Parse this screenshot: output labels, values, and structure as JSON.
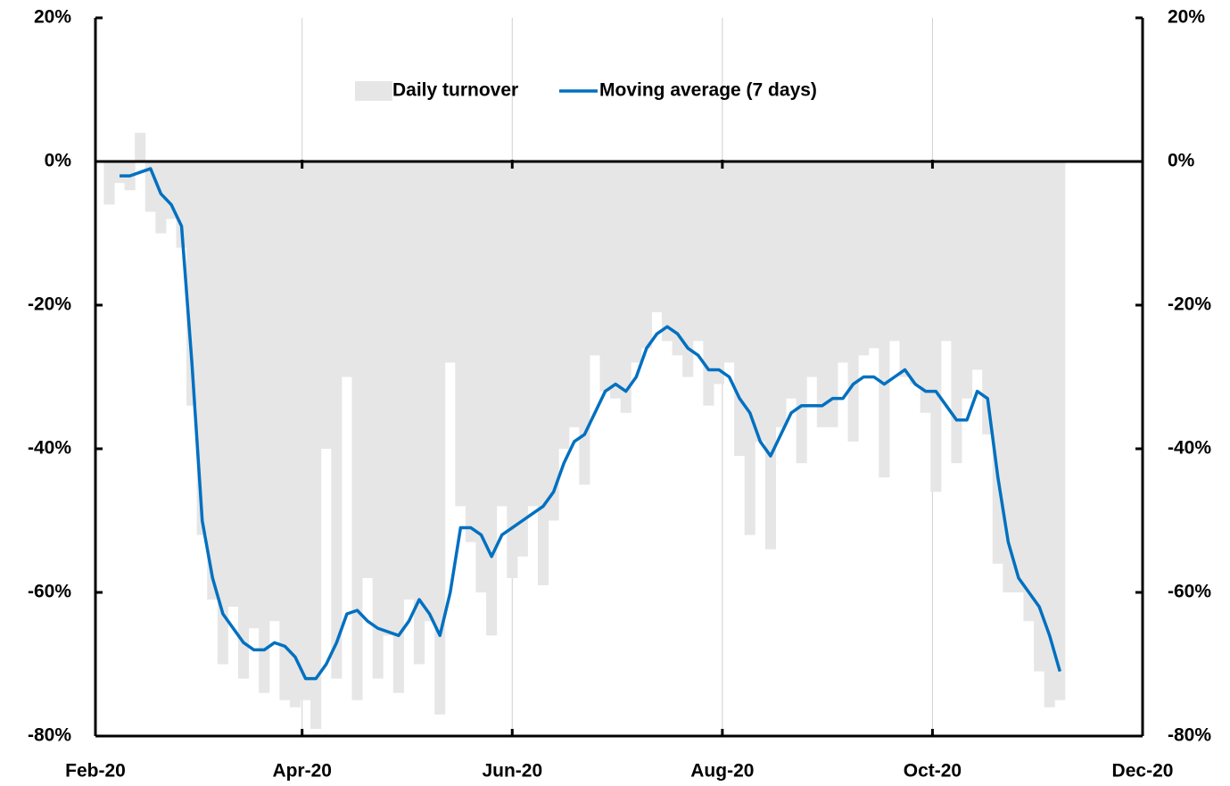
{
  "chart_data": {
    "type": "bar_line",
    "x": [
      4,
      7,
      10,
      13,
      16,
      19,
      22,
      25,
      28,
      31,
      34,
      37,
      40,
      43,
      46,
      49,
      52,
      55,
      58,
      61,
      64,
      67,
      70,
      73,
      76,
      79,
      82,
      85,
      88,
      91,
      94,
      97,
      100,
      103,
      106,
      109,
      112,
      115,
      118,
      121,
      124,
      127,
      130,
      133,
      136,
      139,
      142,
      145,
      148,
      151,
      154,
      157,
      160,
      163,
      166,
      169,
      172,
      175,
      178,
      181,
      184,
      187,
      190,
      193,
      196,
      199,
      202,
      205,
      208,
      211,
      214,
      217,
      220,
      223,
      226,
      229,
      232,
      235,
      238,
      241,
      244,
      247,
      250,
      253,
      256,
      259,
      262,
      265,
      268,
      271,
      274,
      277,
      280
    ],
    "series": [
      {
        "name": "Daily turnover",
        "kind": "bar",
        "color": "#e6e6e6",
        "values": [
          -6,
          -3,
          -4,
          4,
          -7,
          -10,
          -8,
          -12,
          -34,
          -52,
          -61,
          -70,
          -62,
          -72,
          -65,
          -74,
          -64,
          -75,
          -76,
          -75,
          -79,
          -40,
          -72,
          -30,
          -75,
          -58,
          -72,
          -66,
          -74,
          -61,
          -70,
          -64,
          -77,
          -28,
          -48,
          -53,
          -60,
          -66,
          -48,
          -58,
          -55,
          -48,
          -59,
          -50,
          -40,
          -37,
          -45,
          -27,
          -32,
          -33,
          -35,
          -28,
          -26,
          -21,
          -25,
          -27,
          -30,
          -25,
          -34,
          -31,
          -28,
          -41,
          -52,
          -39,
          -54,
          -37,
          -33,
          -42,
          -30,
          -37,
          -37,
          -28,
          -39,
          -27,
          -26,
          -44,
          -25,
          -30,
          -31,
          -35,
          -46,
          -25,
          -42,
          -33,
          -29,
          -38,
          -56,
          -60,
          -60,
          -64,
          -71,
          -76,
          -75
        ]
      },
      {
        "name": "Moving average (7 days)",
        "kind": "line",
        "color": "#0070c0",
        "values": [
          null,
          -2,
          -2,
          -1.5,
          -1,
          -4.5,
          -6,
          -9,
          -28,
          -50,
          -58,
          -63,
          -65,
          -67,
          -68,
          -68,
          -67,
          -67.5,
          -69,
          -72,
          -72,
          -70,
          -67,
          -63,
          -62.5,
          -64,
          -65,
          -65.5,
          -66,
          -64,
          -61,
          -63,
          -66,
          -60,
          -51,
          -51,
          -52,
          -55,
          -52,
          -51,
          -50,
          -49,
          -48,
          -46,
          -42,
          -39,
          -38,
          -35,
          -32,
          -31,
          -32,
          -30,
          -26,
          -24,
          -23,
          -24,
          -26,
          -27,
          -29,
          -29,
          -30,
          -33,
          -35,
          -39,
          -41,
          -38,
          -35,
          -34,
          -34,
          -34,
          -33,
          -33,
          -31,
          -30,
          -30,
          -31,
          -30,
          -29,
          -31,
          -32,
          -32,
          -34,
          -36,
          -36,
          -32,
          -33,
          -44,
          -53,
          -58,
          -60,
          -62,
          -66,
          -71
        ]
      }
    ],
    "xlim": [
      0,
      304
    ],
    "xticks": [
      {
        "value": 0,
        "label": "Feb-20"
      },
      {
        "value": 60,
        "label": "Apr-20"
      },
      {
        "value": 121,
        "label": "Jun-20"
      },
      {
        "value": 182,
        "label": "Aug-20"
      },
      {
        "value": 243,
        "label": "Oct-20"
      },
      {
        "value": 304,
        "label": "Dec-20"
      }
    ],
    "ylim": [
      -80,
      20
    ],
    "yticks": [
      {
        "value": 20,
        "label": "20%"
      },
      {
        "value": 0,
        "label": "0%"
      },
      {
        "value": -20,
        "label": "-20%"
      },
      {
        "value": -40,
        "label": "-40%"
      },
      {
        "value": -60,
        "label": "-60%"
      },
      {
        "value": -80,
        "label": "-80%"
      }
    ],
    "y2lim": [
      -80,
      20
    ],
    "y2ticks": [
      {
        "value": 20,
        "label": "20%"
      },
      {
        "value": 0,
        "label": "0%"
      },
      {
        "value": -20,
        "label": "-20%"
      },
      {
        "value": -40,
        "label": "-40%"
      },
      {
        "value": -60,
        "label": "-60%"
      },
      {
        "value": -80,
        "label": "-80%"
      }
    ],
    "grid": "x",
    "legend": "top"
  }
}
